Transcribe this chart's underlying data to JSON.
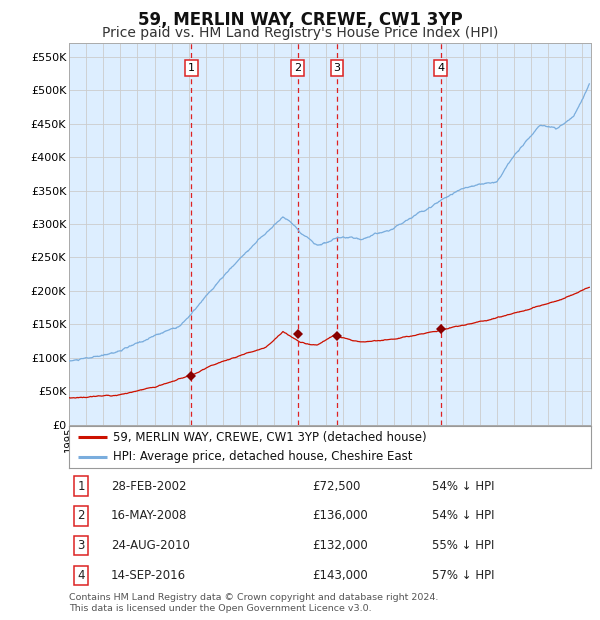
{
  "title": "59, MERLIN WAY, CREWE, CW1 3YP",
  "subtitle": "Price paid vs. HM Land Registry's House Price Index (HPI)",
  "title_fontsize": 12,
  "subtitle_fontsize": 10,
  "background_color": "#ffffff",
  "plot_bg_color": "#ddeeff",
  "ylim": [
    0,
    570000
  ],
  "yticks": [
    0,
    50000,
    100000,
    150000,
    200000,
    250000,
    300000,
    350000,
    400000,
    450000,
    500000,
    550000
  ],
  "ytick_labels": [
    "£0",
    "£50K",
    "£100K",
    "£150K",
    "£200K",
    "£250K",
    "£300K",
    "£350K",
    "£400K",
    "£450K",
    "£500K",
    "£550K"
  ],
  "hpi_line_color": "#7aaddd",
  "price_line_color": "#cc1100",
  "marker_color": "#880000",
  "vline_color": "#dd2222",
  "grid_color": "#cccccc",
  "xmin": 1995.0,
  "xmax": 2025.5,
  "purchases": [
    {
      "date_num": 2002.15,
      "price": 72500,
      "label": "1"
    },
    {
      "date_num": 2008.37,
      "price": 136000,
      "label": "2"
    },
    {
      "date_num": 2010.65,
      "price": 132000,
      "label": "3"
    },
    {
      "date_num": 2016.71,
      "price": 143000,
      "label": "4"
    }
  ],
  "table_rows": [
    {
      "num": "1",
      "date": "28-FEB-2002",
      "price": "£72,500",
      "pct": "54% ↓ HPI"
    },
    {
      "num": "2",
      "date": "16-MAY-2008",
      "price": "£136,000",
      "pct": "54% ↓ HPI"
    },
    {
      "num": "3",
      "date": "24-AUG-2010",
      "price": "£132,000",
      "pct": "55% ↓ HPI"
    },
    {
      "num": "4",
      "date": "14-SEP-2016",
      "price": "£143,000",
      "pct": "57% ↓ HPI"
    }
  ],
  "legend_entries": [
    {
      "label": "59, MERLIN WAY, CREWE, CW1 3YP (detached house)",
      "color": "#cc1100"
    },
    {
      "label": "HPI: Average price, detached house, Cheshire East",
      "color": "#7aaddd"
    }
  ],
  "footer": "Contains HM Land Registry data © Crown copyright and database right 2024.\nThis data is licensed under the Open Government Licence v3.0."
}
